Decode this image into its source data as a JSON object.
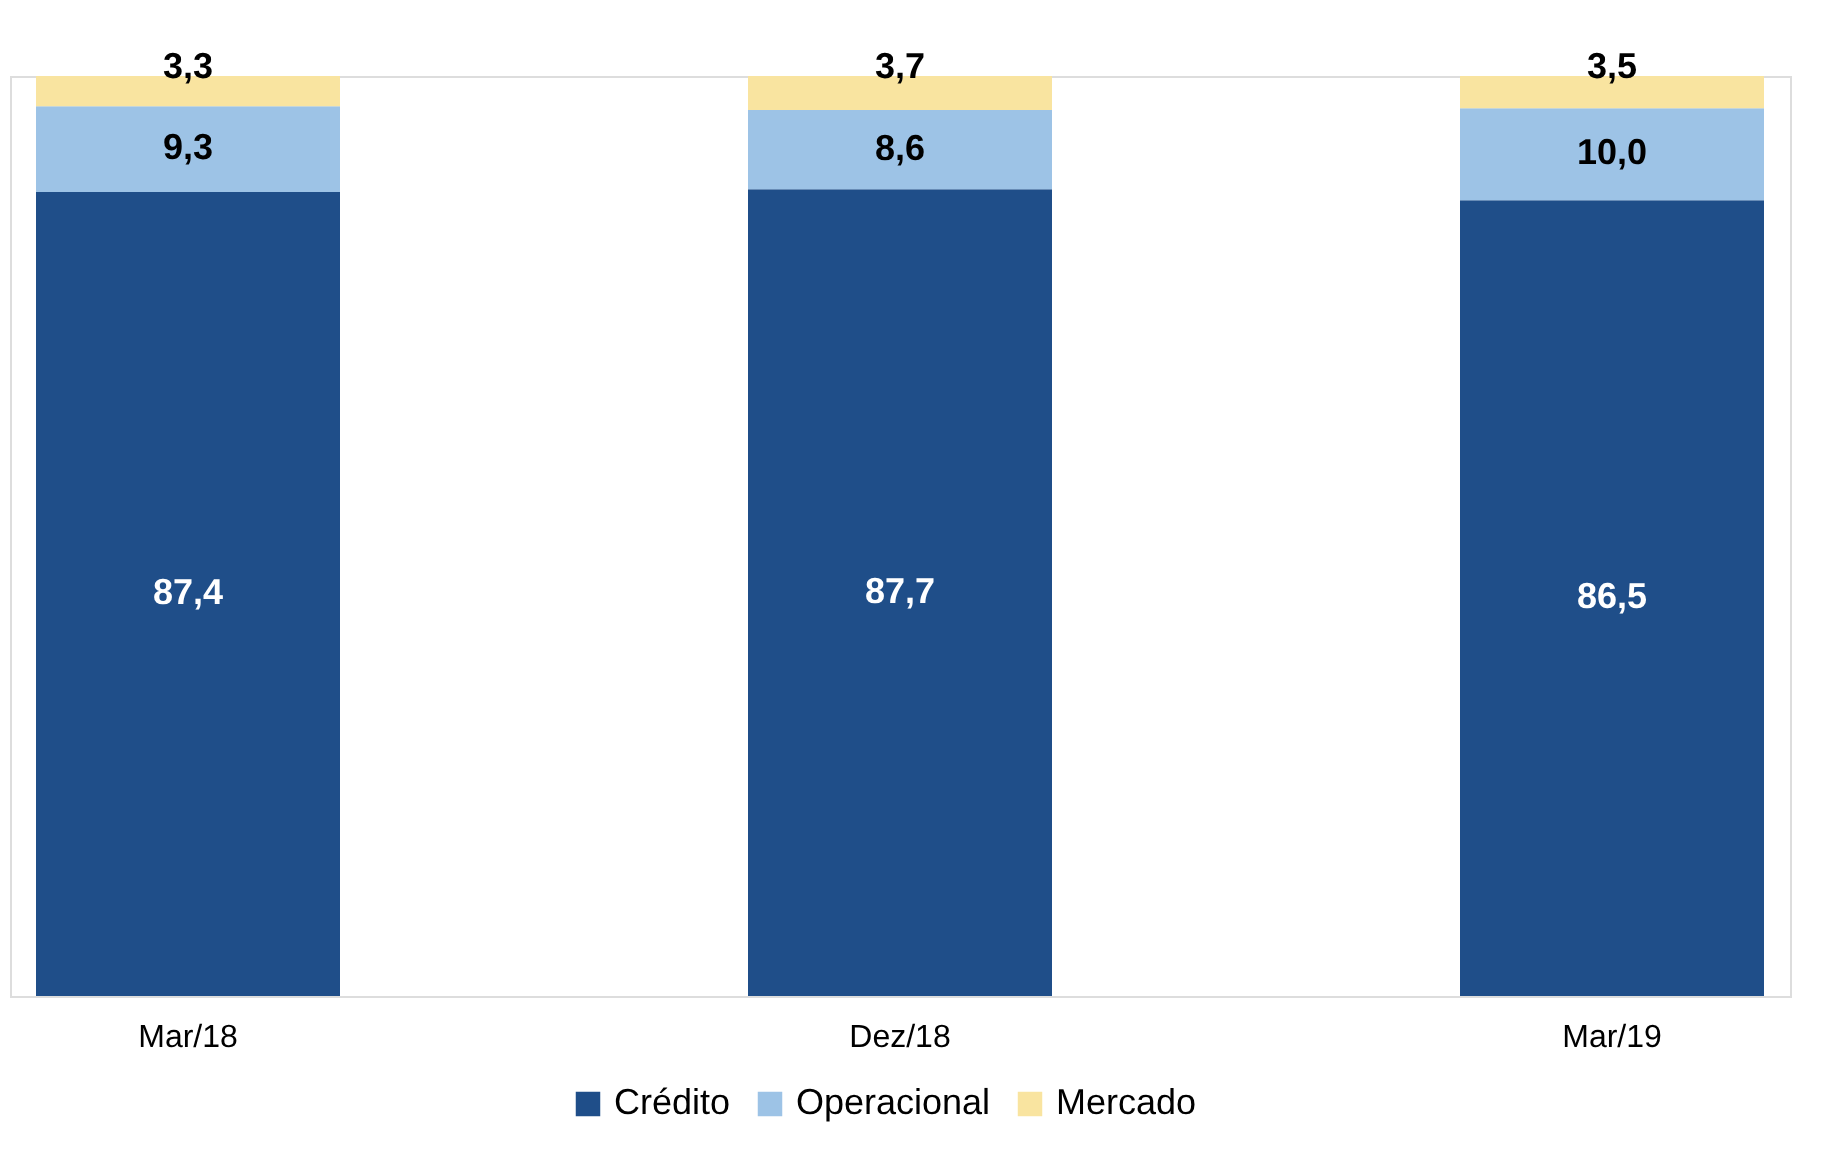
{
  "chart_data": {
    "type": "bar",
    "stacked": true,
    "legend": "bottom",
    "categories": [
      "Mar/18",
      "Dez/18",
      "Mar/19"
    ],
    "series": [
      {
        "name": "Crédito",
        "color": "#1f4e89",
        "values": [
          87.4,
          87.7,
          86.5
        ],
        "value_labels": [
          "87,4",
          "87,7",
          "86,5"
        ]
      },
      {
        "name": "Operacional",
        "color": "#9dc3e6",
        "values": [
          9.3,
          8.6,
          10.0
        ],
        "value_labels": [
          "9,3",
          "8,6",
          "10,0"
        ]
      },
      {
        "name": "Mercado",
        "color": "#f9e4a0",
        "values": [
          3.3,
          3.7,
          3.5
        ],
        "value_labels": [
          "3,3",
          "3,7",
          "3,5"
        ]
      }
    ]
  }
}
